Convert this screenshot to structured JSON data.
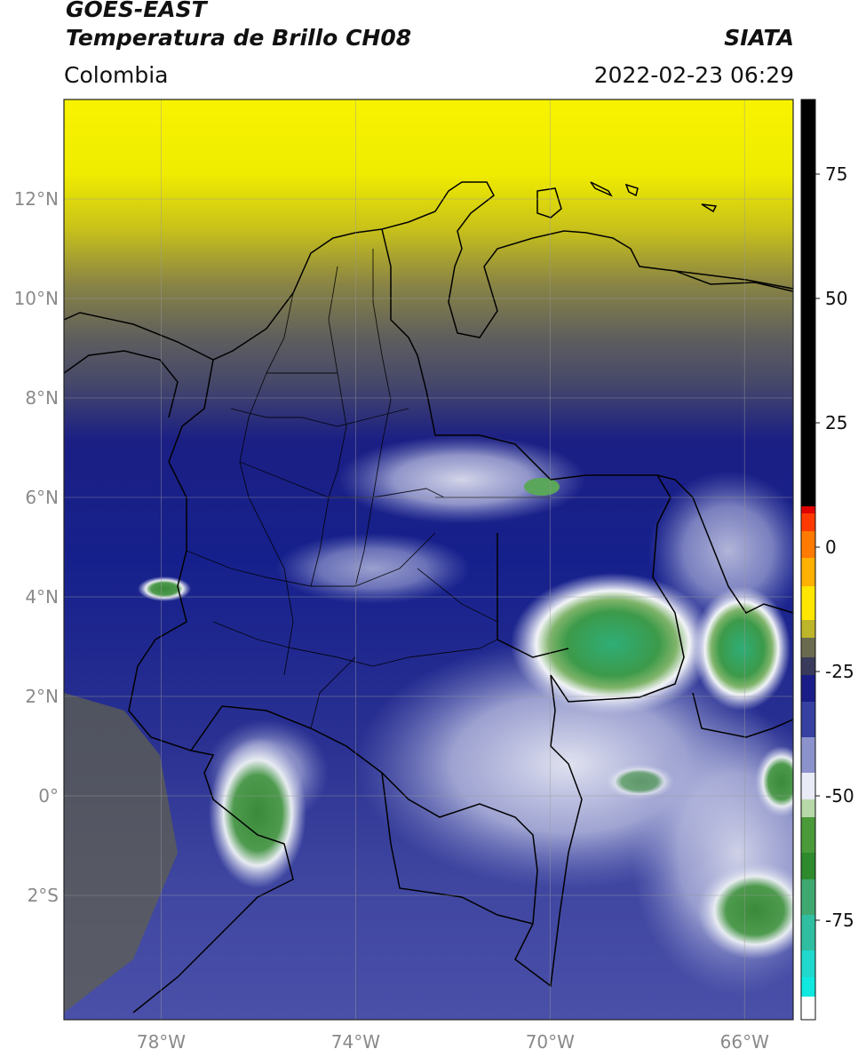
{
  "header": {
    "satellite": "GOES-EAST",
    "product": "Temperatura de Brillo CH08",
    "region": "Colombia",
    "institution": "SIATA",
    "datetime": "2022-02-23 06:29"
  },
  "map": {
    "lon_range": [
      -80,
      -65
    ],
    "lat_range": [
      -4.5,
      14
    ],
    "lat_ticks": [
      {
        "value": 12,
        "label": "12°N"
      },
      {
        "value": 10,
        "label": "10°N"
      },
      {
        "value": 8,
        "label": "8°N"
      },
      {
        "value": 6,
        "label": "6°N"
      },
      {
        "value": 4,
        "label": "4°N"
      },
      {
        "value": 2,
        "label": "2°N"
      },
      {
        "value": 0,
        "label": "0°"
      },
      {
        "value": -2,
        "label": "2°S"
      }
    ],
    "lon_ticks": [
      {
        "value": -78,
        "label": "78°W"
      },
      {
        "value": -74,
        "label": "74°W"
      },
      {
        "value": -70,
        "label": "70°W"
      },
      {
        "value": -66,
        "label": "66°W"
      }
    ]
  },
  "colorbar": {
    "range": [
      -95,
      90
    ],
    "ticks": [
      {
        "value": 75,
        "label": "75"
      },
      {
        "value": 50,
        "label": "50"
      },
      {
        "value": 25,
        "label": "25"
      },
      {
        "value": 0,
        "label": "0"
      },
      {
        "value": -25,
        "label": "-25"
      },
      {
        "value": -50,
        "label": "-50"
      },
      {
        "value": -75,
        "label": "-75"
      }
    ]
  }
}
